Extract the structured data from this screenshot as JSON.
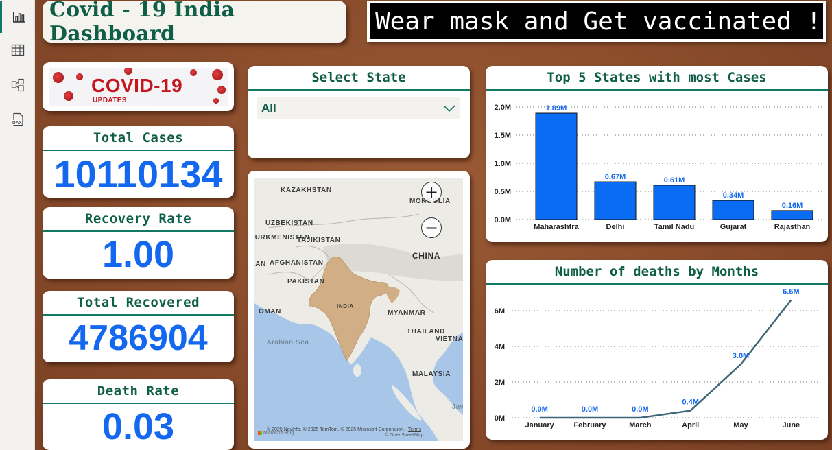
{
  "nav": {
    "items": [
      {
        "name": "report-view",
        "icon": "bar-chart-icon",
        "active": true
      },
      {
        "name": "table-view",
        "icon": "table-grid-icon",
        "active": false
      },
      {
        "name": "model-view",
        "icon": "model-icon",
        "active": false
      },
      {
        "name": "dax-query-view",
        "icon": "dax-icon",
        "active": false
      }
    ],
    "dax_label": "DAX"
  },
  "header": {
    "title": "Covid - 19 India Dashboard",
    "banner": "Wear mask and Get vaccinated !"
  },
  "logo": {
    "title": "COVID-19",
    "subtitle": "UPDATES"
  },
  "kpis": {
    "total_cases": {
      "label": "Total Cases",
      "value": "10110134"
    },
    "recovery_rate": {
      "label": "Recovery Rate",
      "value": "1.00"
    },
    "total_recovered": {
      "label": "Total Recovered",
      "value": "4786904"
    },
    "death_rate": {
      "label": "Death Rate",
      "value": "0.03"
    }
  },
  "slicer": {
    "title": "Select State",
    "selected": "All"
  },
  "map": {
    "labels": [
      "KAZAKHSTAN",
      "MONGOLIA",
      "UZBEKISTAN",
      "TURKMENISTAN",
      "TAJIKISTAN",
      "AFGHANISTAN",
      "IRAN",
      "PAKISTAN",
      "CHINA",
      "INDIA",
      "OMAN",
      "MYANMAR",
      "THAILAND",
      "VIETNAM",
      "Arabian Sea",
      "MALAYSIA",
      "Java"
    ],
    "attribution": "© 2025 NavInfo, © 2025 TomTom, © 2025 Microsoft Corporation,",
    "terms": "Terms",
    "osm": "© OpenStreetMap",
    "bing": "Microsoft Bing"
  },
  "chart_data": [
    {
      "type": "bar",
      "title": "Top 5 States with most Cases",
      "categories": [
        "Maharashtra",
        "Delhi",
        "Tamil Nadu",
        "Gujarat",
        "Rajasthan"
      ],
      "values": [
        1890000,
        670000,
        610000,
        340000,
        160000
      ],
      "data_labels": [
        "1.89M",
        "0.67M",
        "0.61M",
        "0.34M",
        "0.16M"
      ],
      "yticks": [
        "0.0M",
        "0.5M",
        "1.0M",
        "1.5M",
        "2.0M"
      ],
      "ylim": [
        0,
        2000000
      ],
      "grid": true,
      "color": "#0a6cf2"
    },
    {
      "type": "line",
      "title": "Number of deaths by Months",
      "categories": [
        "January",
        "February",
        "March",
        "April",
        "May",
        "June"
      ],
      "values": [
        0,
        0,
        0,
        400000,
        3000000,
        6600000
      ],
      "data_labels": [
        "0.0M",
        "0.0M",
        "0.0M",
        "0.4M",
        "3.0M",
        "6.6M"
      ],
      "yticks": [
        "0M",
        "2M",
        "4M",
        "6M"
      ],
      "ylim": [
        0,
        7000000
      ],
      "grid": true,
      "color": "#3f6578"
    }
  ]
}
